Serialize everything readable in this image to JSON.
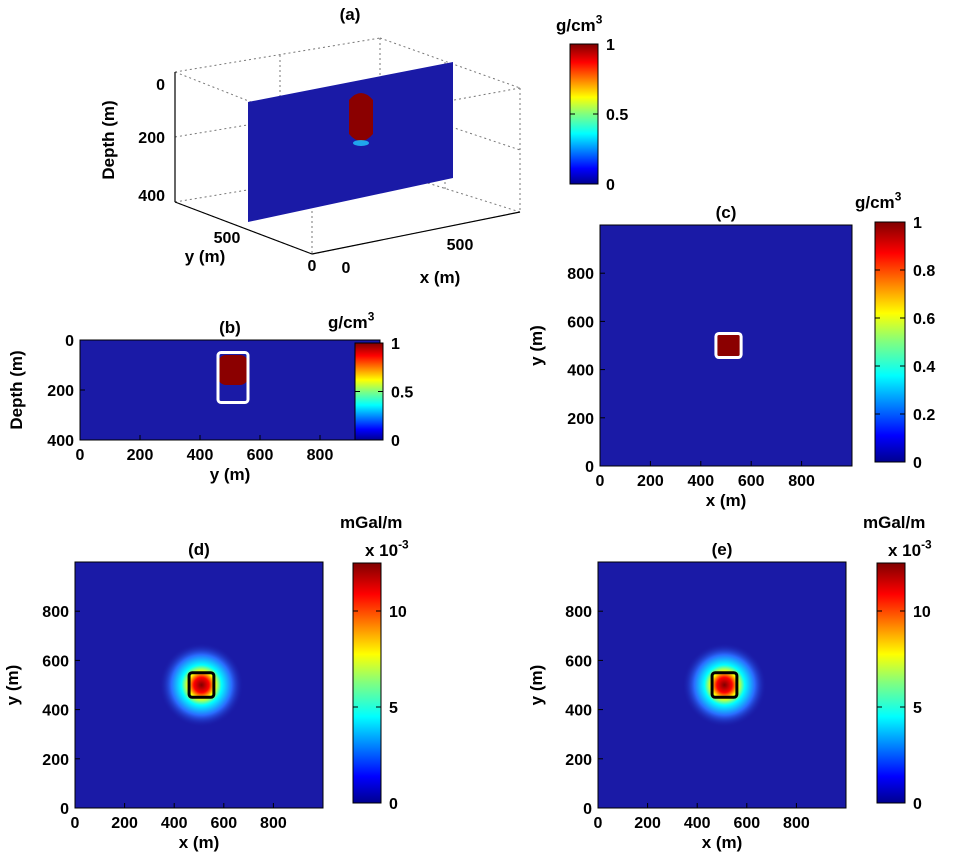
{
  "colors": {
    "background_blue": "#1a1aa6",
    "anomaly_red": "#8b0000",
    "outline_white": "#ffffff",
    "outline_black": "#000000",
    "colormap": "jet"
  },
  "chart_data": [
    {
      "panel": "(a)",
      "type": "3d-slice",
      "title": "(a)",
      "xlabel": "x (m)",
      "ylabel": "y (m)",
      "zlabel": "Depth (m)",
      "x_ticks": [
        "0",
        "500"
      ],
      "y_ticks": [
        "0",
        "500"
      ],
      "z_ticks": [
        "0",
        "200",
        "400"
      ],
      "colorbar": {
        "label": "g/cm",
        "label_sup": "3",
        "ticks": [
          "0",
          "0.5",
          "1"
        ],
        "range": [
          0,
          1
        ]
      },
      "anomaly": {
        "depth_top": 50,
        "depth_bottom": 200,
        "density": 1
      }
    },
    {
      "panel": "(b)",
      "type": "heatmap",
      "title": "(b)",
      "xlabel": "y (m)",
      "ylabel": "Depth (m)",
      "xlim": [
        0,
        1000
      ],
      "ylim": [
        400,
        0
      ],
      "x_ticks": [
        "0",
        "200",
        "400",
        "600",
        "800"
      ],
      "y_ticks": [
        "0",
        "200",
        "400"
      ],
      "colorbar": {
        "label": "g/cm",
        "label_sup": "3",
        "ticks": [
          "0",
          "0.5",
          "1"
        ],
        "range": [
          0,
          1
        ]
      },
      "anomaly": {
        "x_range": [
          460,
          560
        ],
        "depth_range": [
          60,
          180
        ],
        "density": 1
      },
      "outline": {
        "x_range": [
          460,
          560
        ],
        "depth_range": [
          50,
          250
        ],
        "color": "white"
      }
    },
    {
      "panel": "(c)",
      "type": "heatmap",
      "title": "(c)",
      "xlabel": "x (m)",
      "ylabel": "y (m)",
      "xlim": [
        0,
        1000
      ],
      "ylim": [
        0,
        1000
      ],
      "x_ticks": [
        "0",
        "200",
        "400",
        "600",
        "800"
      ],
      "y_ticks": [
        "0",
        "200",
        "400",
        "600",
        "800"
      ],
      "colorbar": {
        "label": "g/cm",
        "label_sup": "3",
        "ticks": [
          "0",
          "0.2",
          "0.4",
          "0.6",
          "0.8",
          "1"
        ],
        "range": [
          0,
          1
        ]
      },
      "anomaly": {
        "x_range": [
          460,
          560
        ],
        "y_range": [
          450,
          550
        ],
        "density": 1
      },
      "outline": {
        "x_range": [
          460,
          560
        ],
        "y_range": [
          450,
          550
        ],
        "color": "white"
      }
    },
    {
      "panel": "(d)",
      "type": "heatmap",
      "title": "(d)",
      "xlabel": "x (m)",
      "ylabel": "y (m)",
      "xlim": [
        0,
        1000
      ],
      "ylim": [
        0,
        1000
      ],
      "x_ticks": [
        "0",
        "200",
        "400",
        "600",
        "800"
      ],
      "y_ticks": [
        "0",
        "200",
        "400",
        "600",
        "800"
      ],
      "colorbar": {
        "label": "mGal/m",
        "exponent": "x 10",
        "exponent_sup": "-3",
        "ticks": [
          "0",
          "5",
          "10"
        ],
        "range": [
          0,
          12.5
        ]
      },
      "peak": {
        "x": 510,
        "y": 500,
        "value": 12.5
      },
      "outline": {
        "x_range": [
          460,
          560
        ],
        "y_range": [
          450,
          550
        ],
        "color": "black"
      }
    },
    {
      "panel": "(e)",
      "type": "heatmap",
      "title": "(e)",
      "xlabel": "x (m)",
      "ylabel": "y (m)",
      "xlim": [
        0,
        1000
      ],
      "ylim": [
        0,
        1000
      ],
      "x_ticks": [
        "0",
        "200",
        "400",
        "600",
        "800"
      ],
      "y_ticks": [
        "0",
        "200",
        "400",
        "600",
        "800"
      ],
      "colorbar": {
        "label": "mGal/m",
        "exponent": "x 10",
        "exponent_sup": "-3",
        "ticks": [
          "0",
          "5",
          "10"
        ],
        "range": [
          0,
          12.5
        ]
      },
      "peak": {
        "x": 510,
        "y": 500,
        "value": 12.5
      },
      "outline": {
        "x_range": [
          460,
          560
        ],
        "y_range": [
          450,
          550
        ],
        "color": "black"
      }
    }
  ]
}
